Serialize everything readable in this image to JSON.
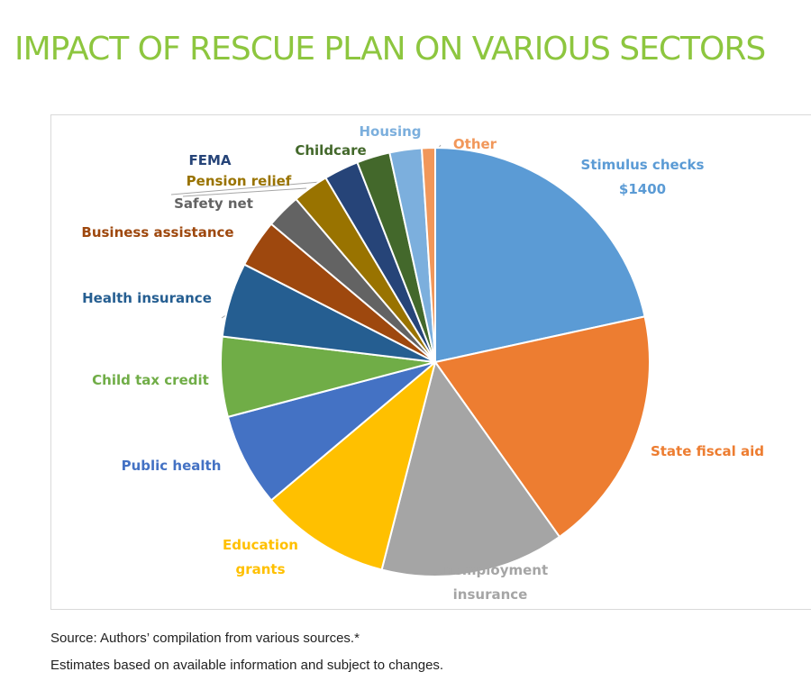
{
  "chart_data": {
    "type": "pie",
    "title": "IMPACT OF RESCUE PLAN ON VARIOUS SECTORS",
    "slices": [
      {
        "label": "Stimulus checks $1400",
        "lines": [
          "Stimulus checks",
          "$1400"
        ],
        "value": 21.5,
        "color": "#5B9BD5",
        "label_color": "#5B9BD5"
      },
      {
        "label": "State fiscal aid",
        "lines": [
          "State fiscal aid"
        ],
        "value": 18.5,
        "color": "#ED7D31",
        "label_color": "#ED7D31"
      },
      {
        "label": "Unemployment insurance",
        "lines": [
          "Unemployment",
          "insurance"
        ],
        "value": 13.8,
        "color": "#A5A5A5",
        "label_color": "#A5A5A5"
      },
      {
        "label": "Education grants",
        "lines": [
          "Education",
          "grants"
        ],
        "value": 9.8,
        "color": "#FFC000",
        "label_color": "#FFC000"
      },
      {
        "label": "Public health",
        "lines": [
          "Public health"
        ],
        "value": 7.0,
        "color": "#4472C4",
        "label_color": "#4472C4"
      },
      {
        "label": "Child tax credit",
        "lines": [
          "Child tax credit"
        ],
        "value": 6.0,
        "color": "#70AD47",
        "label_color": "#70AD47"
      },
      {
        "label": "Health insurance",
        "lines": [
          "Health insurance"
        ],
        "value": 5.6,
        "color": "#255E91",
        "label_color": "#255E91"
      },
      {
        "label": "Business assistance",
        "lines": [
          "Business assistance"
        ],
        "value": 3.6,
        "color": "#9E480E",
        "label_color": "#9E480E"
      },
      {
        "label": "Safety net",
        "lines": [
          "Safety net"
        ],
        "value": 2.6,
        "color": "#636363",
        "label_color": "#636363"
      },
      {
        "label": "Pension relief",
        "lines": [
          "Pension relief"
        ],
        "value": 2.7,
        "color": "#997300",
        "label_color": "#997300"
      },
      {
        "label": "FEMA",
        "lines": [
          "FEMA"
        ],
        "value": 2.6,
        "color": "#264478",
        "label_color": "#264478"
      },
      {
        "label": "Childcare",
        "lines": [
          "Childcare"
        ],
        "value": 2.5,
        "color": "#43682B",
        "label_color": "#43682B"
      },
      {
        "label": "Housing",
        "lines": [
          "Housing"
        ],
        "value": 2.4,
        "color": "#7CAFDD",
        "label_color": "#7CAFDD"
      },
      {
        "label": "Other",
        "lines": [
          "Other"
        ],
        "value": 1.0,
        "color": "#F1975A",
        "label_color": "#F1975A"
      }
    ]
  },
  "source_note": "Source: Authors’ compilation from various sources.*",
  "estimate_note": "Estimates based on available information and subject to changes."
}
